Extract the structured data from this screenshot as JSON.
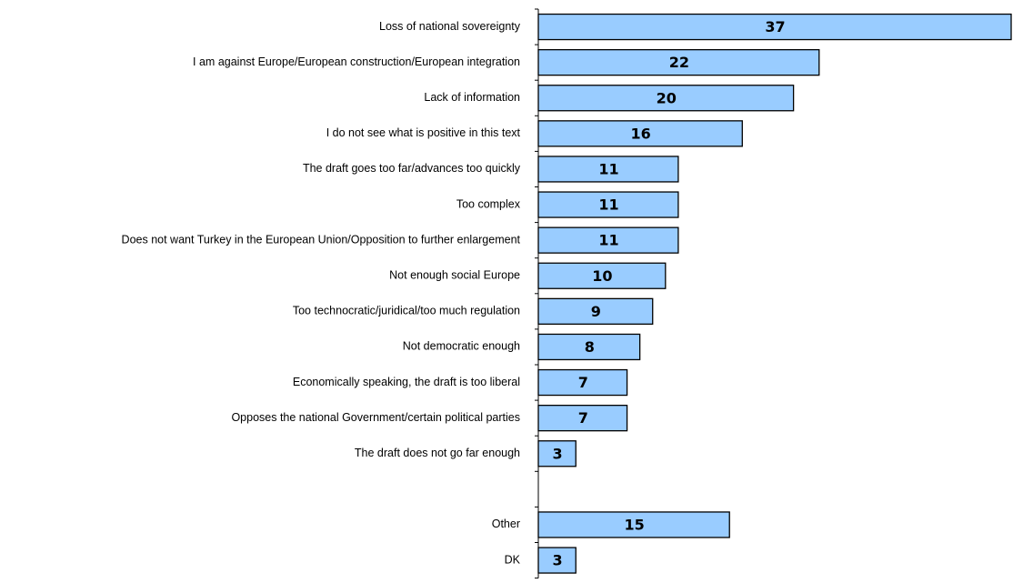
{
  "chart_data": {
    "type": "bar",
    "orientation": "horizontal",
    "title": "",
    "xlabel": "",
    "ylabel": "",
    "xlim": [
      0,
      37
    ],
    "grid": false,
    "legend": "none",
    "bar_color": "#99CCFF",
    "bar_edge_color": "#000000",
    "categories": [
      "Loss of national sovereignty",
      "I am against Europe/European construction/European integration",
      "Lack of information",
      "I do not see what is positive in this text",
      "The draft goes too far/advances too quickly",
      "Too complex",
      "Does not want Turkey in the European Union/Opposition to further enlargement",
      "Not enough social Europe",
      "Too technocratic/juridical/too much regulation",
      "Not democratic enough",
      "Economically speaking, the draft is too liberal",
      "Opposes the national Government/certain political parties",
      "The draft does not go far enough",
      "",
      "Other",
      "DK"
    ],
    "values": [
      37,
      22,
      20,
      16,
      11,
      11,
      11,
      10,
      9,
      8,
      7,
      7,
      3,
      null,
      15,
      3
    ]
  }
}
